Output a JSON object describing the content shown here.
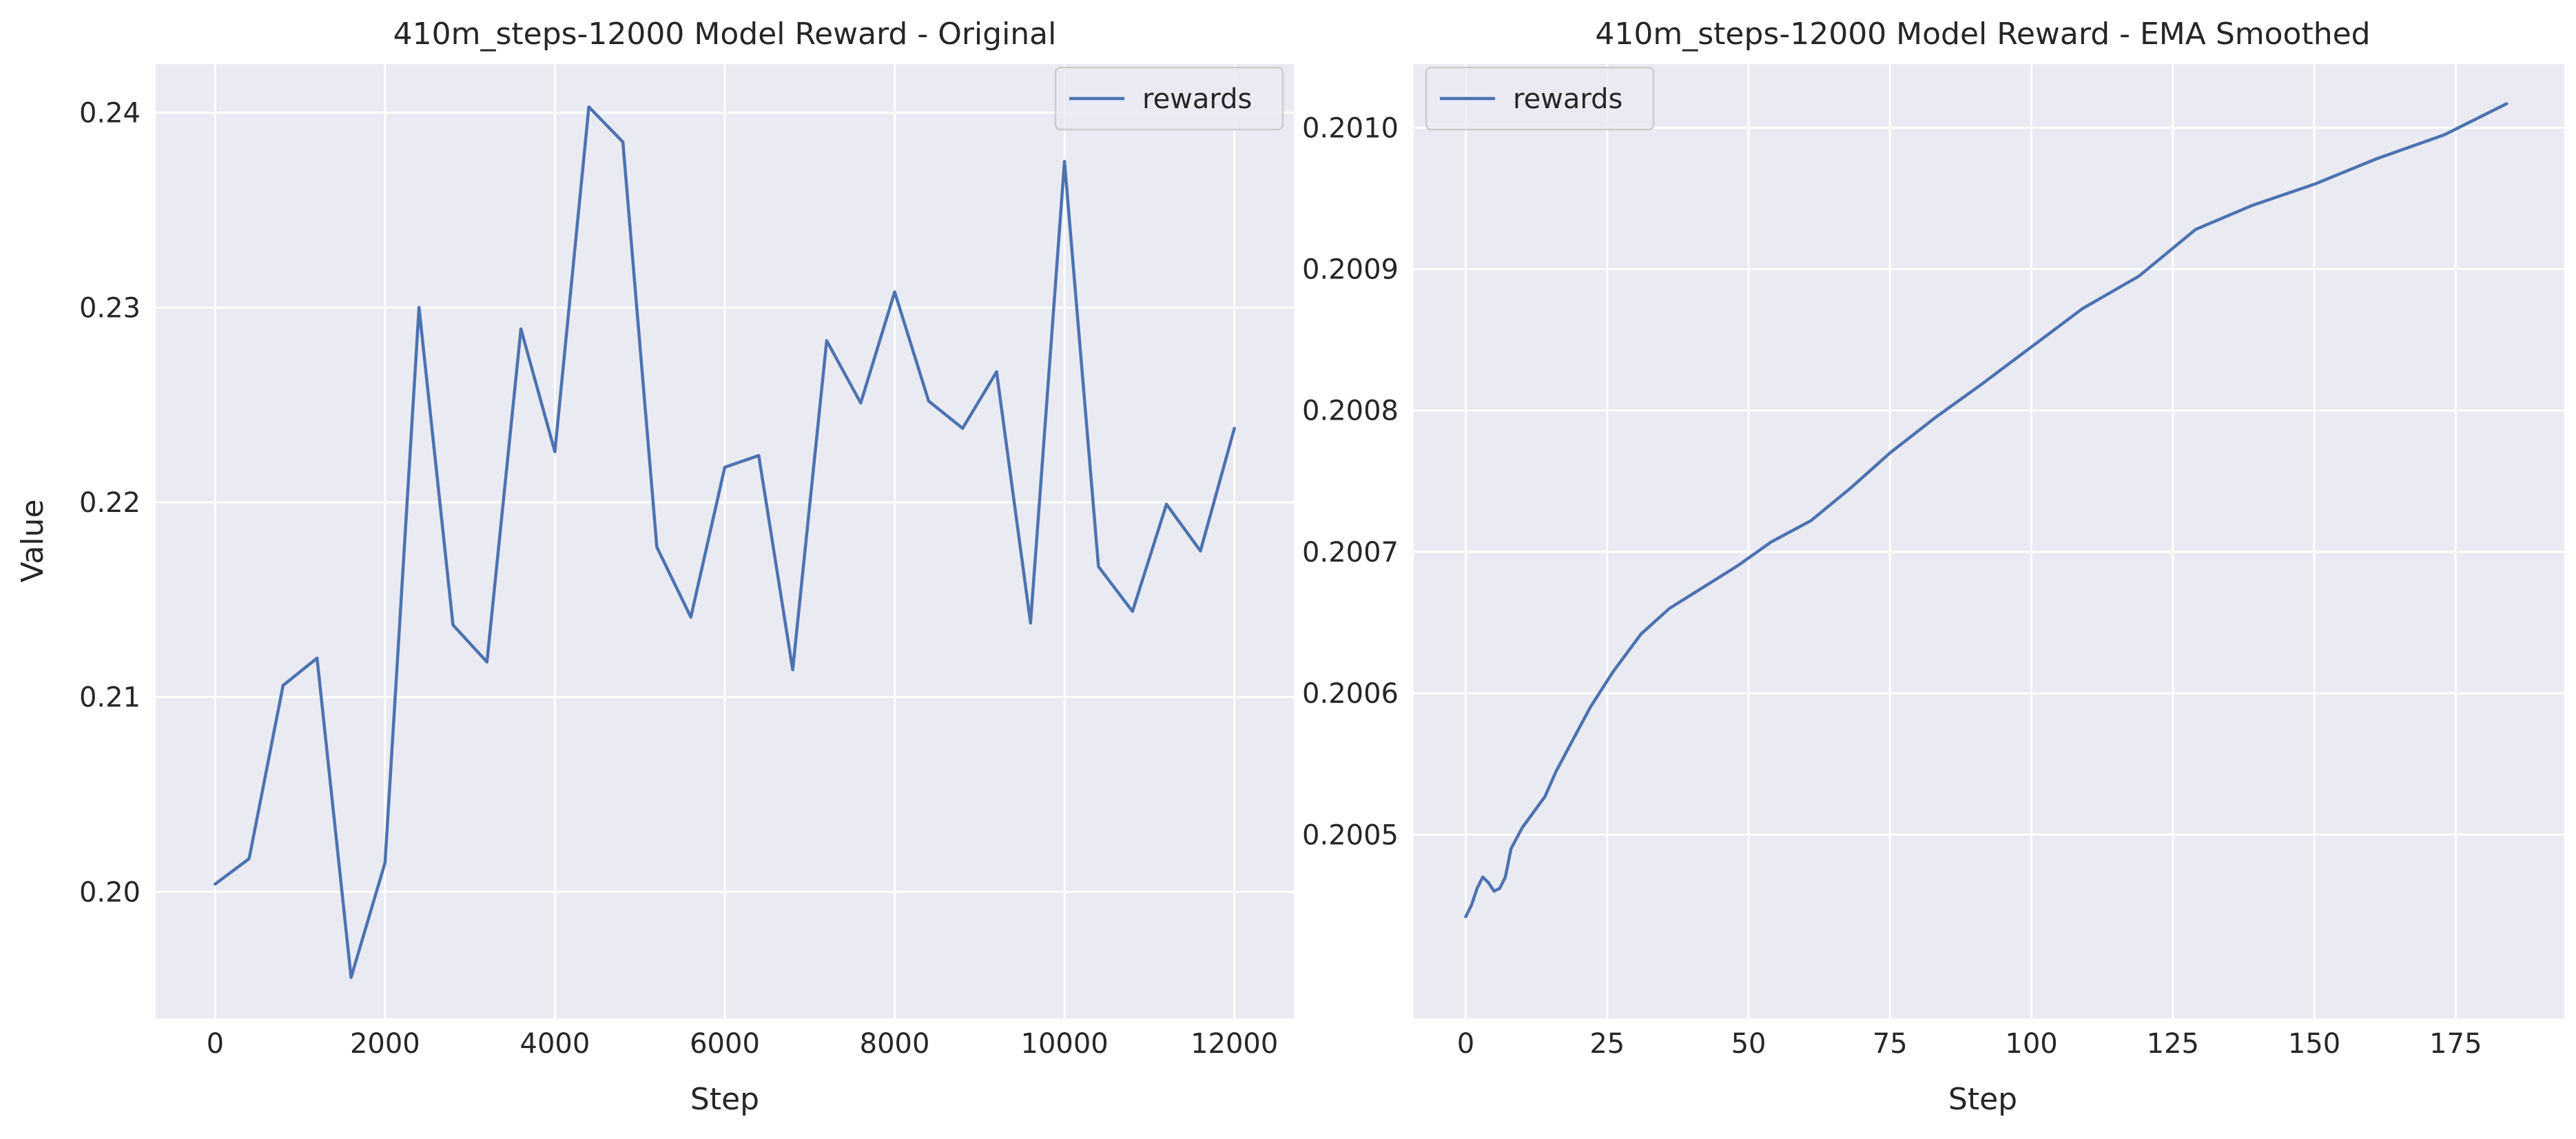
{
  "chart_data": [
    {
      "type": "line",
      "title": "410m_steps-12000 Model Reward - Original",
      "xlabel": "Step",
      "ylabel": "Value",
      "xlim": [
        -700,
        12700
      ],
      "ylim": [
        0.1935,
        0.2425
      ],
      "xticks": [
        0,
        2000,
        4000,
        6000,
        8000,
        10000,
        12000
      ],
      "xtick_labels": [
        "0",
        "2000",
        "4000",
        "6000",
        "8000",
        "10000",
        "12000"
      ],
      "yticks": [
        0.2,
        0.21,
        0.22,
        0.23,
        0.24
      ],
      "ytick_labels": [
        "0.20",
        "0.21",
        "0.22",
        "0.23",
        "0.24"
      ],
      "grid": true,
      "legend": {
        "placement": "top-right",
        "entries": [
          "rewards"
        ]
      },
      "series": [
        {
          "name": "rewards",
          "color": "#4c72b0",
          "x": [
            0,
            400,
            800,
            1200,
            1600,
            2000,
            2400,
            2800,
            3200,
            3600,
            4000,
            4400,
            4800,
            5200,
            5600,
            6000,
            6400,
            6800,
            7200,
            7600,
            8000,
            8400,
            8800,
            9200,
            9600,
            10000,
            10400,
            10800,
            11200,
            11600,
            12000
          ],
          "y": [
            0.2004,
            0.2017,
            0.2106,
            0.212,
            0.1956,
            0.2015,
            0.23,
            0.2137,
            0.2118,
            0.2289,
            0.2226,
            0.2403,
            0.2385,
            0.2177,
            0.2141,
            0.2218,
            0.2224,
            0.2114,
            0.2283,
            0.2251,
            0.2308,
            0.2252,
            0.2238,
            0.2267,
            0.2138,
            0.2375,
            0.2167,
            0.2144,
            0.2199,
            0.2175,
            0.2238
          ]
        }
      ]
    },
    {
      "type": "line",
      "title": "410m_steps-12000 Model Reward - EMA Smoothed",
      "xlabel": "Step",
      "ylabel": "",
      "xlim": [
        -9.2,
        194.2
      ],
      "ylim": [
        0.20037,
        0.201045
      ],
      "xticks": [
        0,
        25,
        50,
        75,
        100,
        125,
        150,
        175
      ],
      "xtick_labels": [
        "0",
        "25",
        "50",
        "75",
        "100",
        "125",
        "150",
        "175"
      ],
      "yticks": [
        0.2005,
        0.2006,
        0.2007,
        0.2008,
        0.2009,
        0.201
      ],
      "ytick_labels": [
        "0.2005",
        "0.2006",
        "0.2007",
        "0.2008",
        "0.2009",
        "0.2010"
      ],
      "grid": true,
      "legend": {
        "placement": "top-left",
        "entries": [
          "rewards"
        ]
      },
      "series": [
        {
          "name": "rewards",
          "color": "#4c72b0",
          "x": [
            0,
            1,
            2,
            3,
            4,
            5,
            6,
            7,
            8,
            10,
            12,
            14,
            16,
            18,
            20,
            22,
            26,
            31,
            36,
            42,
            48,
            54,
            61,
            68,
            75,
            83,
            91,
            100,
            109,
            119,
            129,
            139,
            150,
            161,
            173,
            184
          ],
          "y": [
            0.200442,
            0.20045,
            0.200462,
            0.20047,
            0.200466,
            0.20046,
            0.200462,
            0.20047,
            0.20049,
            0.200505,
            0.200516,
            0.200527,
            0.200545,
            0.20056,
            0.200575,
            0.20059,
            0.200615,
            0.200642,
            0.20066,
            0.200675,
            0.20069,
            0.200707,
            0.200722,
            0.200745,
            0.20077,
            0.200795,
            0.200818,
            0.200845,
            0.200872,
            0.200895,
            0.200928,
            0.200945,
            0.20096,
            0.200978,
            0.200995,
            0.201017
          ]
        }
      ]
    }
  ]
}
